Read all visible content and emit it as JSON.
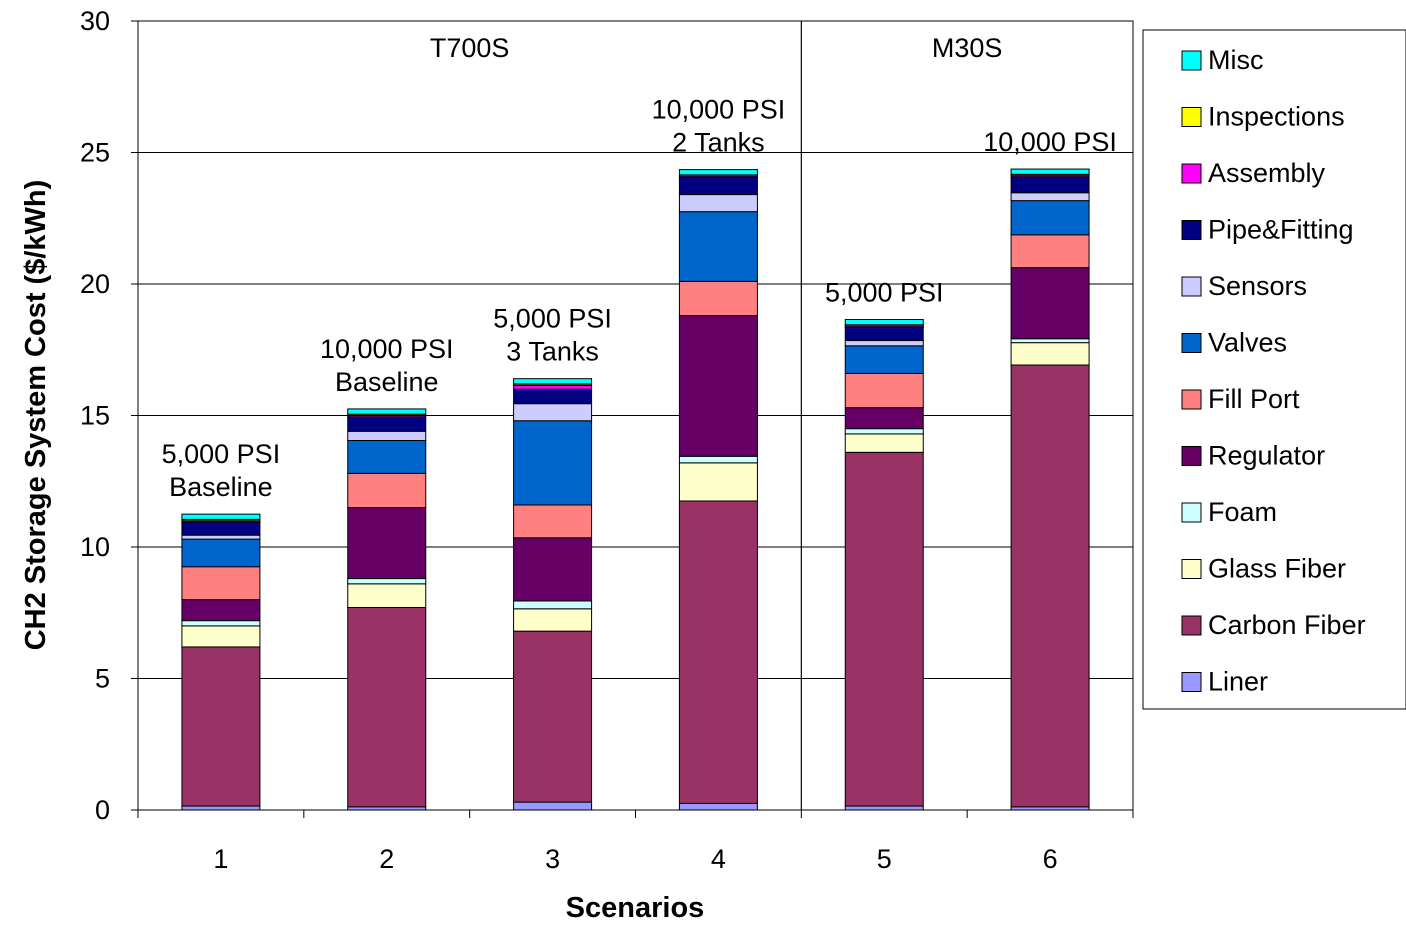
{
  "chart_data": {
    "type": "bar",
    "stacked": true,
    "title": "",
    "xlabel": "Scenarios",
    "ylabel": "CH2 Storage System Cost ($/kWh)",
    "ylim": [
      0,
      30
    ],
    "yticks": [
      0,
      5,
      10,
      15,
      20,
      25,
      30
    ],
    "grid": true,
    "legend_position": "right",
    "categories": [
      "1",
      "2",
      "3",
      "4",
      "5",
      "6"
    ],
    "groups": [
      {
        "label": "T700S",
        "categories": [
          "1",
          "2",
          "3",
          "4"
        ]
      },
      {
        "label": "M30S",
        "categories": [
          "5",
          "6"
        ]
      }
    ],
    "annotations": [
      {
        "category": "1",
        "lines": [
          "5,000 PSI",
          "Baseline"
        ]
      },
      {
        "category": "2",
        "lines": [
          "10,000 PSI",
          "Baseline"
        ]
      },
      {
        "category": "3",
        "lines": [
          "5,000 PSI",
          "3 Tanks"
        ]
      },
      {
        "category": "4",
        "lines": [
          "10,000 PSI",
          "2 Tanks"
        ]
      },
      {
        "category": "5",
        "lines": [
          "5,000 PSI"
        ]
      },
      {
        "category": "6",
        "lines": [
          "10,000 PSI"
        ]
      }
    ],
    "series": [
      {
        "name": "Liner",
        "color": "#9999ff",
        "values": [
          0.15,
          0.12,
          0.3,
          0.25,
          0.15,
          0.12
        ]
      },
      {
        "name": "Carbon Fiber",
        "color": "#993366",
        "values": [
          6.05,
          7.58,
          6.5,
          11.5,
          13.45,
          16.8
        ]
      },
      {
        "name": "Glass Fiber",
        "color": "#ffffcc",
        "values": [
          0.8,
          0.9,
          0.85,
          1.45,
          0.7,
          0.85
        ]
      },
      {
        "name": "Foam",
        "color": "#ccffff",
        "values": [
          0.2,
          0.2,
          0.3,
          0.25,
          0.2,
          0.15
        ]
      },
      {
        "name": "Regulator",
        "color": "#660066",
        "values": [
          0.8,
          2.7,
          2.4,
          5.35,
          0.8,
          2.7
        ]
      },
      {
        "name": "Fill Port",
        "color": "#ff8080",
        "values": [
          1.25,
          1.3,
          1.25,
          1.3,
          1.3,
          1.25
        ]
      },
      {
        "name": "Valves",
        "color": "#0066cc",
        "values": [
          1.05,
          1.25,
          3.2,
          2.65,
          1.05,
          1.3
        ]
      },
      {
        "name": "Sensors",
        "color": "#ccccff",
        "values": [
          0.15,
          0.35,
          0.65,
          0.65,
          0.2,
          0.3
        ]
      },
      {
        "name": "Pipe&Fitting",
        "color": "#000080",
        "values": [
          0.5,
          0.55,
          0.55,
          0.65,
          0.5,
          0.6
        ]
      },
      {
        "name": "Assembly",
        "color": "#ff00ff",
        "values": [
          0.05,
          0.05,
          0.15,
          0.05,
          0.05,
          0.05
        ]
      },
      {
        "name": "Inspections",
        "color": "#ffff00",
        "values": [
          0.05,
          0.05,
          0.05,
          0.05,
          0.05,
          0.05
        ]
      },
      {
        "name": "Misc",
        "color": "#00ffff",
        "values": [
          0.2,
          0.2,
          0.2,
          0.2,
          0.2,
          0.2
        ]
      }
    ]
  }
}
